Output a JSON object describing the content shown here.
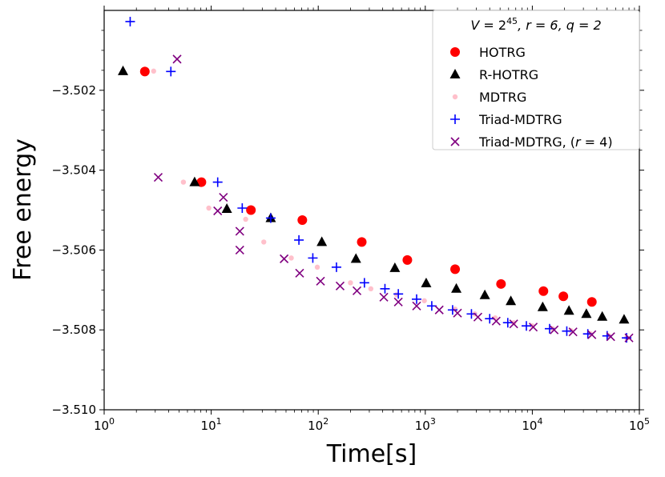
{
  "chart_data": {
    "type": "scatter",
    "xscale": "log",
    "xlabel": "Time[s]",
    "ylabel": "Free energy",
    "xlim": [
      1,
      100000
    ],
    "ylim": [
      -3.51,
      -3.5
    ],
    "x_ticks": [
      {
        "value": 1,
        "base": "10",
        "exp": "0"
      },
      {
        "value": 10,
        "base": "10",
        "exp": "1"
      },
      {
        "value": 100,
        "base": "10",
        "exp": "2"
      },
      {
        "value": 1000,
        "base": "10",
        "exp": "3"
      },
      {
        "value": 10000,
        "base": "10",
        "exp": "4"
      },
      {
        "value": 100000,
        "base": "10",
        "exp": "5"
      }
    ],
    "y_ticks": [
      {
        "value": -3.51,
        "label": "−3.510"
      },
      {
        "value": -3.508,
        "label": "−3.508"
      },
      {
        "value": -3.506,
        "label": "−3.506"
      },
      {
        "value": -3.504,
        "label": "−3.504"
      },
      {
        "value": -3.502,
        "label": "−3.502"
      }
    ],
    "legend": {
      "title": "V = 2^45, r = 6, q = 2",
      "title_parts": {
        "V": "V",
        "base": "2",
        "exp": "45",
        "rest": ", r = 6, q = 2"
      },
      "position": "top-right"
    },
    "series": [
      {
        "name": "HOTRG",
        "label_parts": [
          "HOTRG"
        ],
        "marker": "circle",
        "color": "#ff0000",
        "points": [
          [
            2.4,
            -3.50153
          ],
          [
            8.1,
            -3.5043
          ],
          [
            23.5,
            -3.505
          ],
          [
            71,
            -3.50525
          ],
          [
            255,
            -3.5058
          ],
          [
            680,
            -3.50625
          ],
          [
            1900,
            -3.50648
          ],
          [
            5100,
            -3.50685
          ],
          [
            12700,
            -3.50703
          ],
          [
            19500,
            -3.50716
          ],
          [
            36000,
            -3.5073
          ]
        ]
      },
      {
        "name": "R-HOTRG",
        "label_parts": [
          "R-HOTRG"
        ],
        "marker": "triangle",
        "color": "#000000",
        "points": [
          [
            1.5,
            -3.50152
          ],
          [
            7,
            -3.5043
          ],
          [
            14,
            -3.50497
          ],
          [
            36,
            -3.5052
          ],
          [
            108,
            -3.5058
          ],
          [
            225,
            -3.50622
          ],
          [
            520,
            -3.50645
          ],
          [
            1020,
            -3.50683
          ],
          [
            1950,
            -3.50697
          ],
          [
            3600,
            -3.50713
          ],
          [
            6300,
            -3.50728
          ],
          [
            12500,
            -3.50743
          ],
          [
            22000,
            -3.50752
          ],
          [
            32000,
            -3.5076
          ],
          [
            45000,
            -3.50767
          ],
          [
            72000,
            -3.50774
          ]
        ]
      },
      {
        "name": "MDTRG",
        "label_parts": [
          "MDTRG"
        ],
        "marker": "dot",
        "color": "#ffc0cb",
        "points": [
          [
            2.9,
            -3.50152
          ],
          [
            5.5,
            -3.5043
          ],
          [
            9.5,
            -3.50495
          ],
          [
            21,
            -3.50523
          ],
          [
            31,
            -3.5058
          ],
          [
            56,
            -3.5062
          ],
          [
            98,
            -3.50643
          ],
          [
            200,
            -3.50682
          ],
          [
            310,
            -3.50697
          ],
          [
            540,
            -3.50712
          ],
          [
            980,
            -3.50727
          ],
          [
            1900,
            -3.50748
          ],
          [
            2900,
            -3.5076
          ],
          [
            4500,
            -3.5077
          ],
          [
            6700,
            -3.50782
          ],
          [
            10000,
            -3.5079
          ],
          [
            15500,
            -3.50797
          ],
          [
            23000,
            -3.50802
          ],
          [
            35000,
            -3.5081
          ],
          [
            52000,
            -3.50815
          ],
          [
            76000,
            -3.5082
          ]
        ]
      },
      {
        "name": "Triad-MDTRG",
        "label_parts": [
          "Triad-MDTRG"
        ],
        "marker": "plus",
        "color": "#0000ff",
        "points": [
          [
            1.75,
            -3.50028
          ],
          [
            4.2,
            -3.50153
          ],
          [
            11.5,
            -3.5043
          ],
          [
            19.5,
            -3.50495
          ],
          [
            36,
            -3.5052
          ],
          [
            66,
            -3.50575
          ],
          [
            89,
            -3.5062
          ],
          [
            148,
            -3.50643
          ],
          [
            270,
            -3.50682
          ],
          [
            420,
            -3.50697
          ],
          [
            560,
            -3.5071
          ],
          [
            830,
            -3.50723
          ],
          [
            1150,
            -3.5074
          ],
          [
            1800,
            -3.5075
          ],
          [
            2700,
            -3.5076
          ],
          [
            4000,
            -3.50772
          ],
          [
            5900,
            -3.50782
          ],
          [
            8800,
            -3.5079
          ],
          [
            14500,
            -3.50797
          ],
          [
            21000,
            -3.50803
          ],
          [
            33000,
            -3.5081
          ],
          [
            50000,
            -3.50815
          ],
          [
            76000,
            -3.5082
          ]
        ]
      },
      {
        "name": "Triad-MDTRG, (r=4)",
        "label_parts": [
          "Triad-MDTRG, (",
          "r",
          " = 4)"
        ],
        "marker": "x",
        "color": "#800080",
        "points": [
          [
            4.8,
            -3.50122
          ],
          [
            3.2,
            -3.50418
          ],
          [
            13,
            -3.50468
          ],
          [
            11.5,
            -3.50502
          ],
          [
            18.5,
            -3.50553
          ],
          [
            18.5,
            -3.506
          ],
          [
            48,
            -3.50622
          ],
          [
            67,
            -3.50658
          ],
          [
            105,
            -3.50678
          ],
          [
            160,
            -3.5069
          ],
          [
            230,
            -3.50702
          ],
          [
            410,
            -3.50718
          ],
          [
            560,
            -3.5073
          ],
          [
            830,
            -3.5074
          ],
          [
            1350,
            -3.5075
          ],
          [
            2000,
            -3.50758
          ],
          [
            3100,
            -3.50768
          ],
          [
            4600,
            -3.50778
          ],
          [
            6700,
            -3.50785
          ],
          [
            10200,
            -3.50793
          ],
          [
            16000,
            -3.508
          ],
          [
            24000,
            -3.50805
          ],
          [
            36000,
            -3.50812
          ],
          [
            54000,
            -3.50817
          ],
          [
            80000,
            -3.5082
          ]
        ]
      }
    ]
  }
}
